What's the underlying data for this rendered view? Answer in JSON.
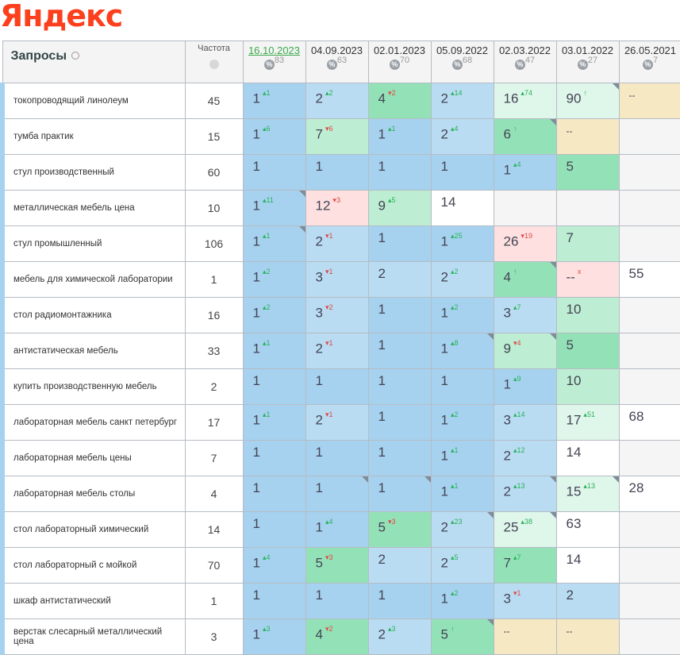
{
  "logo": "Яндекс",
  "header": {
    "queries": "Запросы",
    "frequency": "Частота",
    "dates": [
      {
        "date": "16.10.2023",
        "pct": "83",
        "active": true
      },
      {
        "date": "04.09.2023",
        "pct": "63"
      },
      {
        "date": "02.01.2023",
        "pct": "70"
      },
      {
        "date": "05.09.2022",
        "pct": "68"
      },
      {
        "date": "02.03.2022",
        "pct": "47"
      },
      {
        "date": "03.01.2022",
        "pct": "27"
      },
      {
        "date": "26.05.2021",
        "pct": "7"
      }
    ]
  },
  "colors": {
    "top1": "#a6d2ef",
    "top3": "#b9dcf2",
    "top5": "#93e2b7",
    "top10": "#bdeed3",
    "top30": "#dff6ea",
    "drop": "#fde0df",
    "out": "#f7e8c4"
  },
  "rows": [
    {
      "q": "токопроводящий линолеум",
      "f": "45",
      "c": [
        [
          "1",
          "1",
          "up",
          "b1"
        ],
        [
          "2",
          "2",
          "up",
          "b2"
        ],
        [
          "4",
          "2",
          "down",
          "g1"
        ],
        [
          "2",
          "14",
          "up",
          "b2"
        ],
        [
          "16",
          "74",
          "up",
          "g3"
        ],
        [
          "90",
          "↑",
          "new",
          "g3",
          1
        ],
        [
          "--",
          "",
          "",
          "bg"
        ]
      ]
    },
    {
      "q": "тумба практик",
      "f": "15",
      "c": [
        [
          "1",
          "6",
          "up",
          "b1"
        ],
        [
          "7",
          "6",
          "down",
          "g2"
        ],
        [
          "1",
          "1",
          "up",
          "b1"
        ],
        [
          "2",
          "4",
          "up",
          "b2"
        ],
        [
          "6",
          "↑",
          "new",
          "g1",
          1
        ],
        [
          "--",
          "",
          "",
          "bg"
        ],
        [
          "",
          "",
          "",
          "e"
        ]
      ]
    },
    {
      "q": "стул производственный",
      "f": "60",
      "c": [
        [
          "1",
          "",
          "",
          "b1"
        ],
        [
          "1",
          "",
          "",
          "b1"
        ],
        [
          "1",
          "",
          "",
          "b1"
        ],
        [
          "1",
          "",
          "",
          "b1"
        ],
        [
          "1",
          "4",
          "up",
          "b1"
        ],
        [
          "5",
          "",
          "",
          "g1"
        ],
        [
          "",
          "",
          "",
          "e"
        ]
      ]
    },
    {
      "q": "металлическая мебель цена",
      "f": "10",
      "c": [
        [
          "1",
          "11",
          "up",
          "b1",
          1
        ],
        [
          "12",
          "3",
          "down",
          "pk"
        ],
        [
          "9",
          "5",
          "up",
          "g2"
        ],
        [
          "14",
          "",
          "",
          "w"
        ],
        [
          "",
          "",
          "",
          "e"
        ],
        [
          "",
          "",
          "",
          "e"
        ],
        [
          "",
          "",
          "",
          "e"
        ]
      ]
    },
    {
      "q": "стул промышленный",
      "f": "106",
      "c": [
        [
          "1",
          "1",
          "up",
          "b1",
          1
        ],
        [
          "2",
          "1",
          "down",
          "b2"
        ],
        [
          "1",
          "",
          "",
          "b1"
        ],
        [
          "1",
          "25",
          "up",
          "b1"
        ],
        [
          "26",
          "19",
          "down",
          "pk"
        ],
        [
          "7",
          "",
          "",
          "g2"
        ],
        [
          "",
          "",
          "",
          "e"
        ]
      ]
    },
    {
      "q": "мебель для химической лаборатории",
      "f": "1",
      "c": [
        [
          "1",
          "2",
          "up",
          "b1"
        ],
        [
          "3",
          "1",
          "down",
          "b2"
        ],
        [
          "2",
          "",
          "",
          "b2"
        ],
        [
          "2",
          "2",
          "up",
          "b2"
        ],
        [
          "4",
          "↑",
          "new",
          "g1",
          1
        ],
        [
          "--",
          "x",
          "down",
          "pk"
        ],
        [
          "55",
          "",
          "",
          "w"
        ]
      ]
    },
    {
      "q": "стол радиомонтажника",
      "f": "16",
      "c": [
        [
          "1",
          "2",
          "up",
          "b1"
        ],
        [
          "3",
          "2",
          "down",
          "b2"
        ],
        [
          "1",
          "",
          "",
          "b1"
        ],
        [
          "1",
          "2",
          "up",
          "b1"
        ],
        [
          "3",
          "7",
          "up",
          "b2"
        ],
        [
          "10",
          "",
          "",
          "g2"
        ],
        [
          "",
          "",
          "",
          "e"
        ]
      ]
    },
    {
      "q": "антистатическая мебель",
      "f": "33",
      "c": [
        [
          "1",
          "1",
          "up",
          "b1"
        ],
        [
          "2",
          "1",
          "down",
          "b2"
        ],
        [
          "1",
          "",
          "",
          "b1"
        ],
        [
          "1",
          "8",
          "up",
          "b1",
          1
        ],
        [
          "9",
          "4",
          "down",
          "g2",
          1
        ],
        [
          "5",
          "",
          "",
          "g1"
        ],
        [
          "",
          "",
          "",
          "e"
        ]
      ]
    },
    {
      "q": "купить производственную мебель",
      "f": "2",
      "c": [
        [
          "1",
          "",
          "",
          "b1"
        ],
        [
          "1",
          "",
          "",
          "b1"
        ],
        [
          "1",
          "",
          "",
          "b1"
        ],
        [
          "1",
          "",
          "",
          "b1"
        ],
        [
          "1",
          "9",
          "up",
          "b1"
        ],
        [
          "10",
          "",
          "",
          "g2"
        ],
        [
          "",
          "",
          "",
          "e"
        ]
      ]
    },
    {
      "q": "лабораторная мебель санкт петербург",
      "f": "17",
      "c": [
        [
          "1",
          "1",
          "up",
          "b1"
        ],
        [
          "2",
          "1",
          "down",
          "b2"
        ],
        [
          "1",
          "",
          "",
          "b1"
        ],
        [
          "1",
          "2",
          "up",
          "b1"
        ],
        [
          "3",
          "14",
          "up",
          "b2"
        ],
        [
          "17",
          "51",
          "up",
          "g3"
        ],
        [
          "68",
          "",
          "",
          "w"
        ]
      ]
    },
    {
      "q": "лабораторная мебель цены",
      "f": "7",
      "c": [
        [
          "1",
          "",
          "",
          "b1"
        ],
        [
          "1",
          "",
          "",
          "b1"
        ],
        [
          "1",
          "",
          "",
          "b1"
        ],
        [
          "1",
          "1",
          "up",
          "b1"
        ],
        [
          "2",
          "12",
          "up",
          "b2"
        ],
        [
          "14",
          "",
          "",
          "w"
        ],
        [
          "",
          "",
          "",
          "e"
        ]
      ]
    },
    {
      "q": "лабораторная мебель столы",
      "f": "4",
      "c": [
        [
          "1",
          "",
          "",
          "b1"
        ],
        [
          "1",
          "",
          "",
          "b1",
          1
        ],
        [
          "1",
          "",
          "",
          "b1",
          1
        ],
        [
          "1",
          "1",
          "up",
          "b1"
        ],
        [
          "2",
          "13",
          "up",
          "b2",
          1
        ],
        [
          "15",
          "13",
          "up",
          "g3",
          1
        ],
        [
          "28",
          "",
          "",
          "w"
        ]
      ]
    },
    {
      "q": "стол лабораторный химический",
      "f": "14",
      "c": [
        [
          "1",
          "",
          "",
          "b1"
        ],
        [
          "1",
          "4",
          "up",
          "b1"
        ],
        [
          "5",
          "3",
          "down",
          "g1"
        ],
        [
          "2",
          "23",
          "up",
          "b2",
          1
        ],
        [
          "25",
          "38",
          "up",
          "g3",
          1
        ],
        [
          "63",
          "",
          "",
          "w"
        ],
        [
          "",
          "",
          "",
          "e"
        ]
      ]
    },
    {
      "q": "стол лабораторный с мойкой",
      "f": "70",
      "c": [
        [
          "1",
          "4",
          "up",
          "b1"
        ],
        [
          "5",
          "3",
          "down",
          "g1"
        ],
        [
          "2",
          "",
          "",
          "b2"
        ],
        [
          "2",
          "5",
          "up",
          "b2"
        ],
        [
          "7",
          "7",
          "up",
          "g1"
        ],
        [
          "14",
          "",
          "",
          "w"
        ],
        [
          "",
          "",
          "",
          "e"
        ]
      ]
    },
    {
      "q": "шкаф антистатический",
      "f": "1",
      "c": [
        [
          "1",
          "",
          "",
          "b1"
        ],
        [
          "1",
          "",
          "",
          "b1"
        ],
        [
          "1",
          "",
          "",
          "b1"
        ],
        [
          "1",
          "2",
          "up",
          "b1"
        ],
        [
          "3",
          "1",
          "down",
          "b2"
        ],
        [
          "2",
          "",
          "",
          "b2"
        ],
        [
          "",
          "",
          "",
          "e"
        ]
      ]
    },
    {
      "q": "верстак слесарный металлический цена",
      "f": "3",
      "c": [
        [
          "1",
          "3",
          "up",
          "b1"
        ],
        [
          "4",
          "2",
          "down",
          "g1"
        ],
        [
          "2",
          "3",
          "up",
          "b2"
        ],
        [
          "5",
          "↑",
          "new",
          "g1",
          1
        ],
        [
          "--",
          "",
          "",
          "bg"
        ],
        [
          "--",
          "",
          "",
          "bg"
        ],
        [
          "",
          "",
          "",
          "e"
        ]
      ]
    }
  ]
}
